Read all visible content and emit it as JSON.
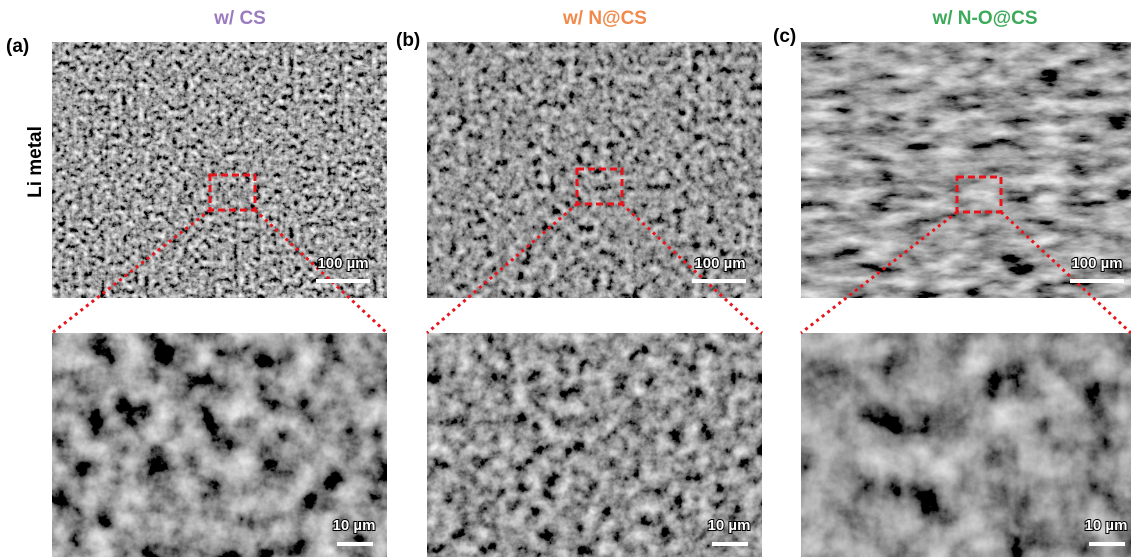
{
  "row_label": "Li metal",
  "panels": [
    {
      "label": "(a)",
      "title": "w/ CS",
      "top_scale": "100 µm",
      "bottom_scale": "10 µm"
    },
    {
      "label": "(b)",
      "title": "w/ N@CS",
      "top_scale": "100 µm",
      "bottom_scale": "10 µm"
    },
    {
      "label": "(c)",
      "title": "w/ N-O@CS",
      "top_scale": "100 µm",
      "bottom_scale": "10 µm"
    }
  ]
}
